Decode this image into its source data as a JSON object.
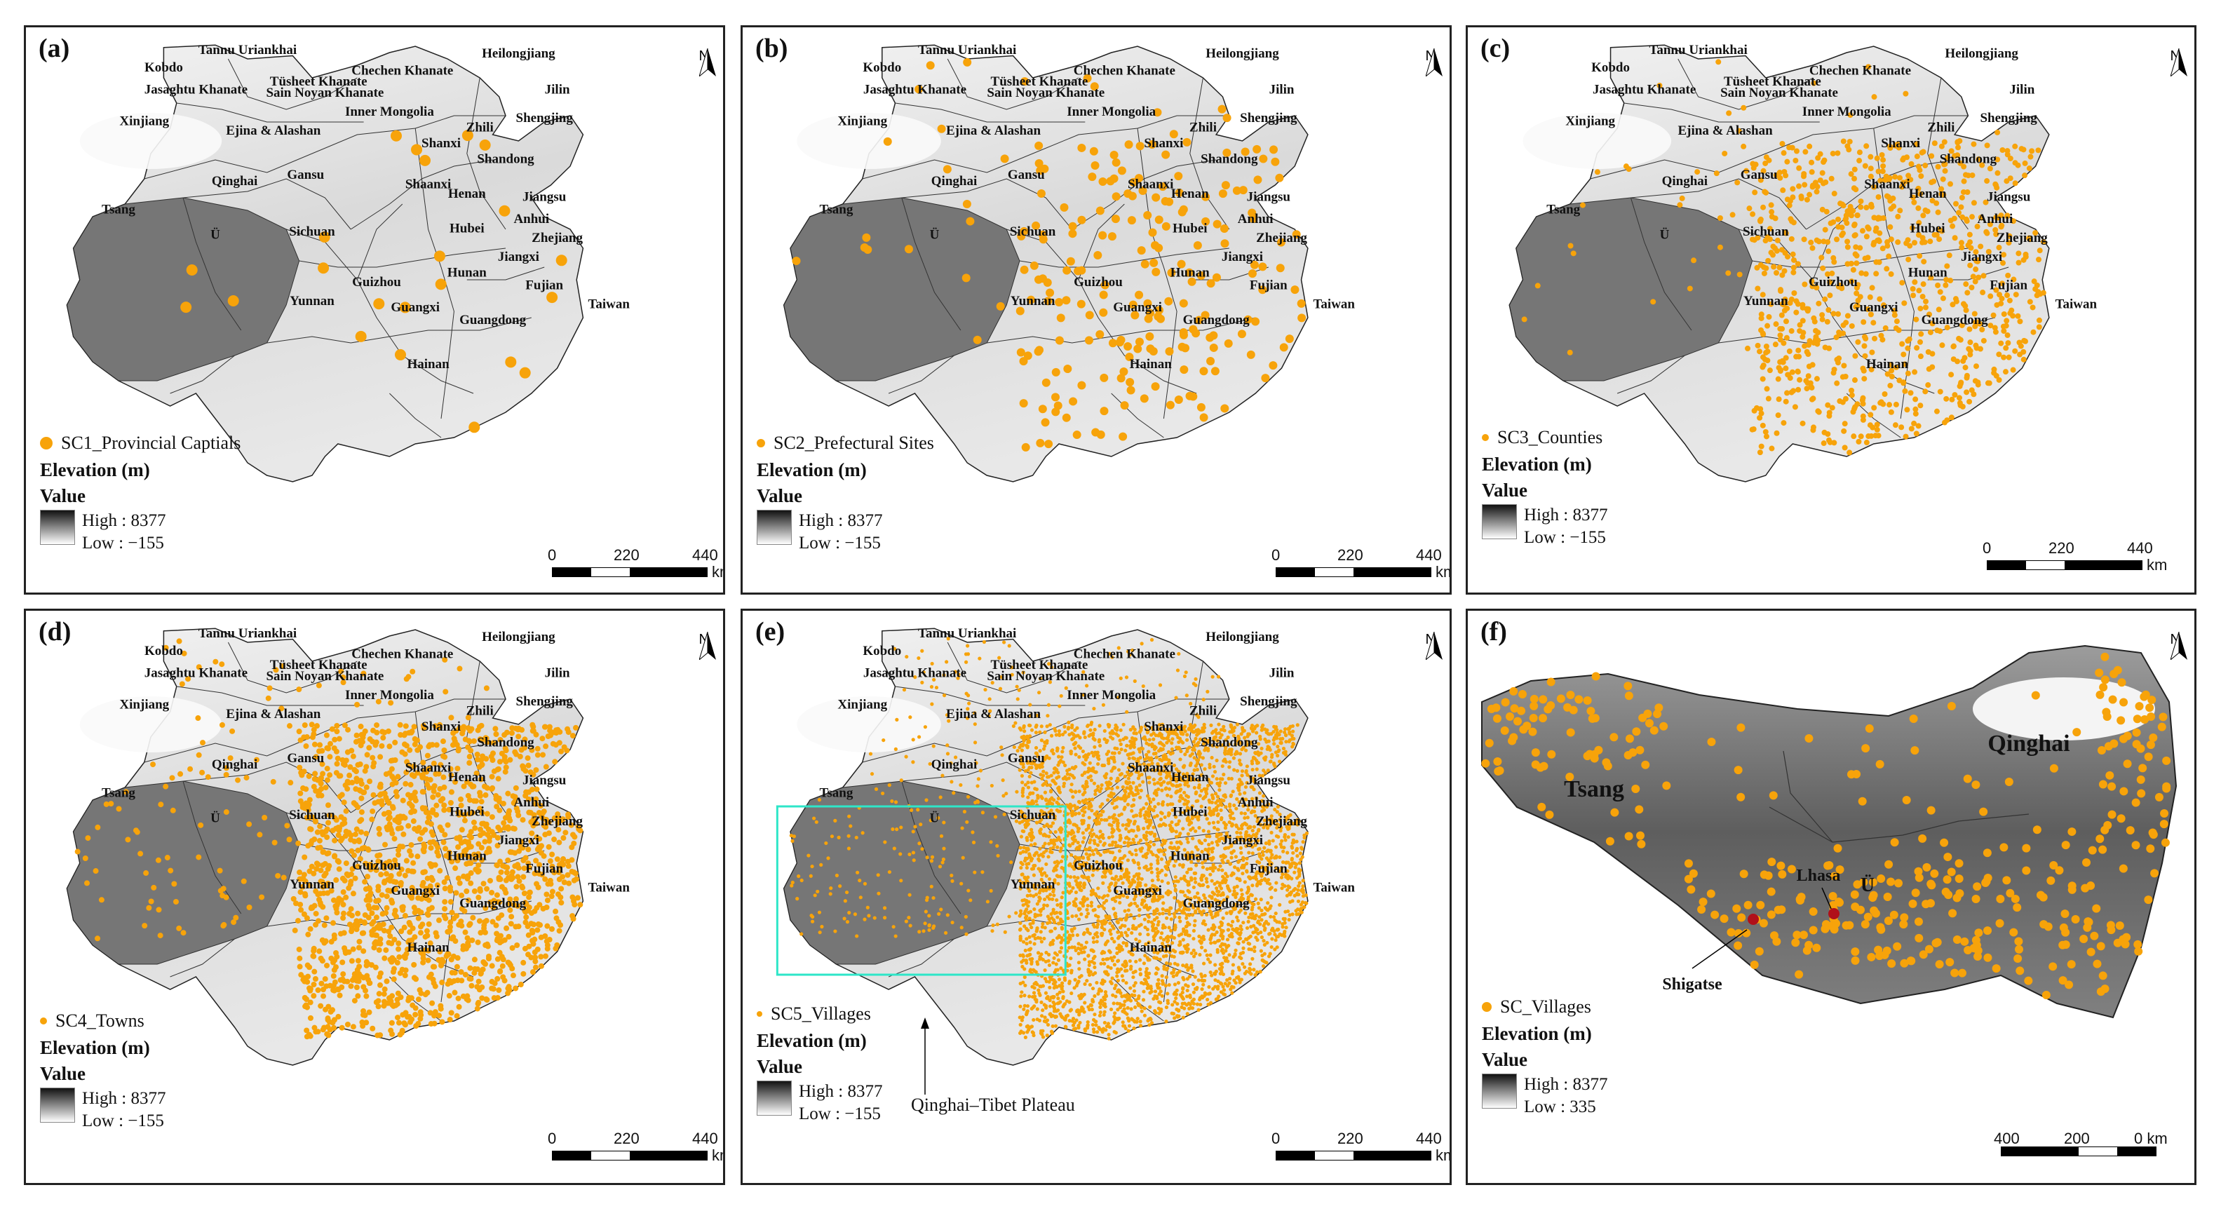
{
  "labels": {
    "provinces": [
      "Tannu Uriankhai",
      "Kobdo",
      "Chechen Khanate",
      "Heilongjiang",
      "Jasaghtu Khanate",
      "Tüsheet Khanate",
      "Sain Noyan Khanate",
      "Jilin",
      "Xinjiang",
      "Inner Mongolia",
      "Shengjing",
      "Zhili",
      "Ejina & Alashan",
      "Shanxi",
      "Shandong",
      "Gansu",
      "Qinghai",
      "Shaanxi",
      "Henan",
      "Jiangsu",
      "Tsang",
      "Ü",
      "Sichuan",
      "Hubei",
      "Anhui",
      "Zhejiang",
      "Jiangxi",
      "Hunan",
      "Guizhou",
      "Fujian",
      "Yunnan",
      "Guangxi",
      "Taiwan",
      "Guangdong",
      "Hainan"
    ]
  },
  "panels": [
    {
      "id": "a",
      "label": "(a)",
      "legend": "SC1_Provincial Captials",
      "elev_title": "Elevation (m)",
      "value_title": "Value",
      "high": "High : 8377",
      "low": "Low : −155",
      "scale": [
        "0",
        "220",
        "440"
      ],
      "unit": "km"
    },
    {
      "id": "b",
      "label": "(b)",
      "legend": "SC2_Prefectural Sites",
      "elev_title": "Elevation (m)",
      "value_title": "Value",
      "high": "High : 8377",
      "low": "Low : −155",
      "scale": [
        "0",
        "220",
        "440"
      ],
      "unit": "km"
    },
    {
      "id": "c",
      "label": "(c)",
      "legend": "SC3_Counties",
      "elev_title": "Elevation (m)",
      "value_title": "Value",
      "high": "High : 8377",
      "low": "Low : −155",
      "scale": [
        "0",
        "220",
        "440"
      ],
      "unit": "km"
    },
    {
      "id": "d",
      "label": "(d)",
      "legend": "SC4_Towns",
      "elev_title": "Elevation (m)",
      "value_title": "Value",
      "high": "High : 8377",
      "low": "Low : −155",
      "scale": [
        "0",
        "220",
        "440"
      ],
      "unit": "km"
    },
    {
      "id": "e",
      "label": "(e)",
      "legend": "SC5_Villages",
      "elev_title": "Elevation (m)",
      "value_title": "Value",
      "high": "High : 8377",
      "low": "Low : −155",
      "scale": [
        "0",
        "220",
        "440"
      ],
      "unit": "km",
      "annotation": "Qinghai–Tibet Plateau"
    },
    {
      "id": "f",
      "label": "(f)",
      "legend": "SC_Villages",
      "elev_title": "Elevation (m)",
      "value_title": "Value",
      "high": "High : 8377",
      "low": "Low : 335",
      "scale": [
        "400",
        "200",
        "0 km"
      ],
      "unit": "",
      "places": [
        "Tsang",
        "Qinghai",
        "Ü",
        "Lhasa",
        "Shigatse"
      ]
    }
  ],
  "north": "N",
  "colors": {
    "points": "#f7a30a",
    "cities": "#b0101a",
    "frame": "#2ee6c8"
  }
}
